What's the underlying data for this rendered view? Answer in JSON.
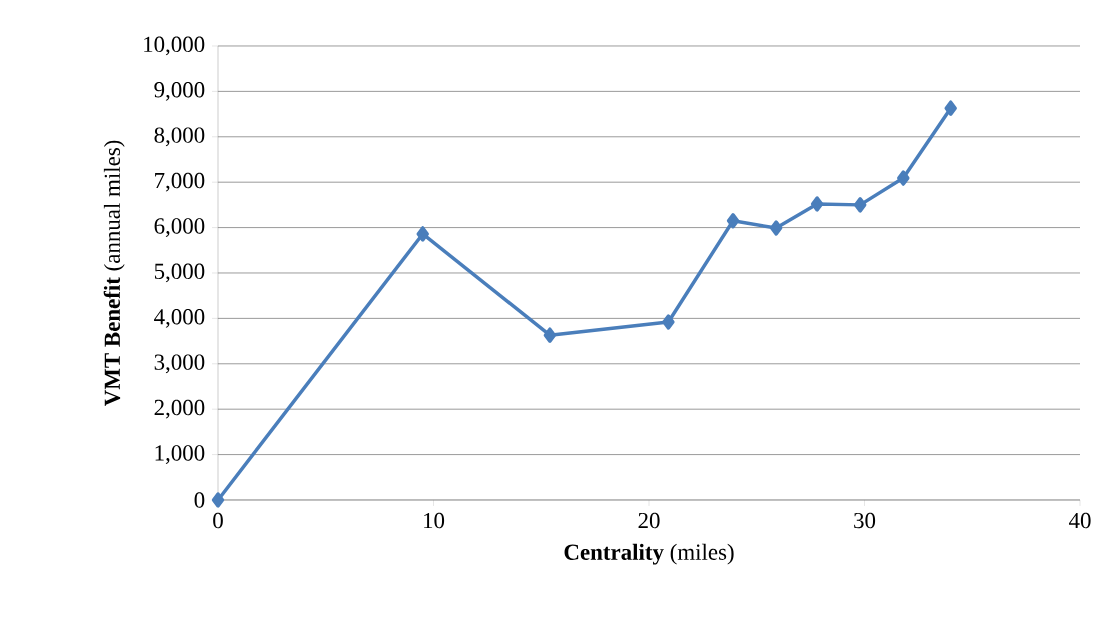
{
  "chart_data": {
    "type": "line",
    "xlabel": "**Centrality** (miles)",
    "ylabel": "**VMT Benefit** (annual miles)",
    "x": [
      0,
      9.5,
      15.4,
      20.9,
      23.9,
      25.9,
      27.8,
      29.8,
      31.8,
      34.0
    ],
    "series": [
      {
        "color": "#4a7ebb",
        "values": [
          0,
          5860,
          3630,
          3920,
          6150,
          5990,
          6520,
          6500,
          7090,
          8630
        ]
      }
    ],
    "xlim": [
      0,
      40
    ],
    "xticks": [
      0,
      10,
      20,
      30,
      40
    ],
    "ylim": [
      0,
      10000
    ],
    "yticks": [
      0,
      {
        "value": 1000,
        "label": "1,000"
      },
      {
        "value": 2000,
        "label": "2,000"
      },
      {
        "value": 3000,
        "label": "3,000"
      },
      {
        "value": 4000,
        "label": "4,000"
      },
      {
        "value": 5000,
        "label": "5,000"
      },
      {
        "value": 6000,
        "label": "6,000"
      },
      {
        "value": 7000,
        "label": "7,000"
      },
      {
        "value": 8000,
        "label": "8,000"
      },
      {
        "value": 9000,
        "label": "9,000"
      },
      {
        "value": 10000,
        "label": "10,000"
      }
    ],
    "grid": "y",
    "marker": "diamond",
    "line_style": "solid"
  }
}
